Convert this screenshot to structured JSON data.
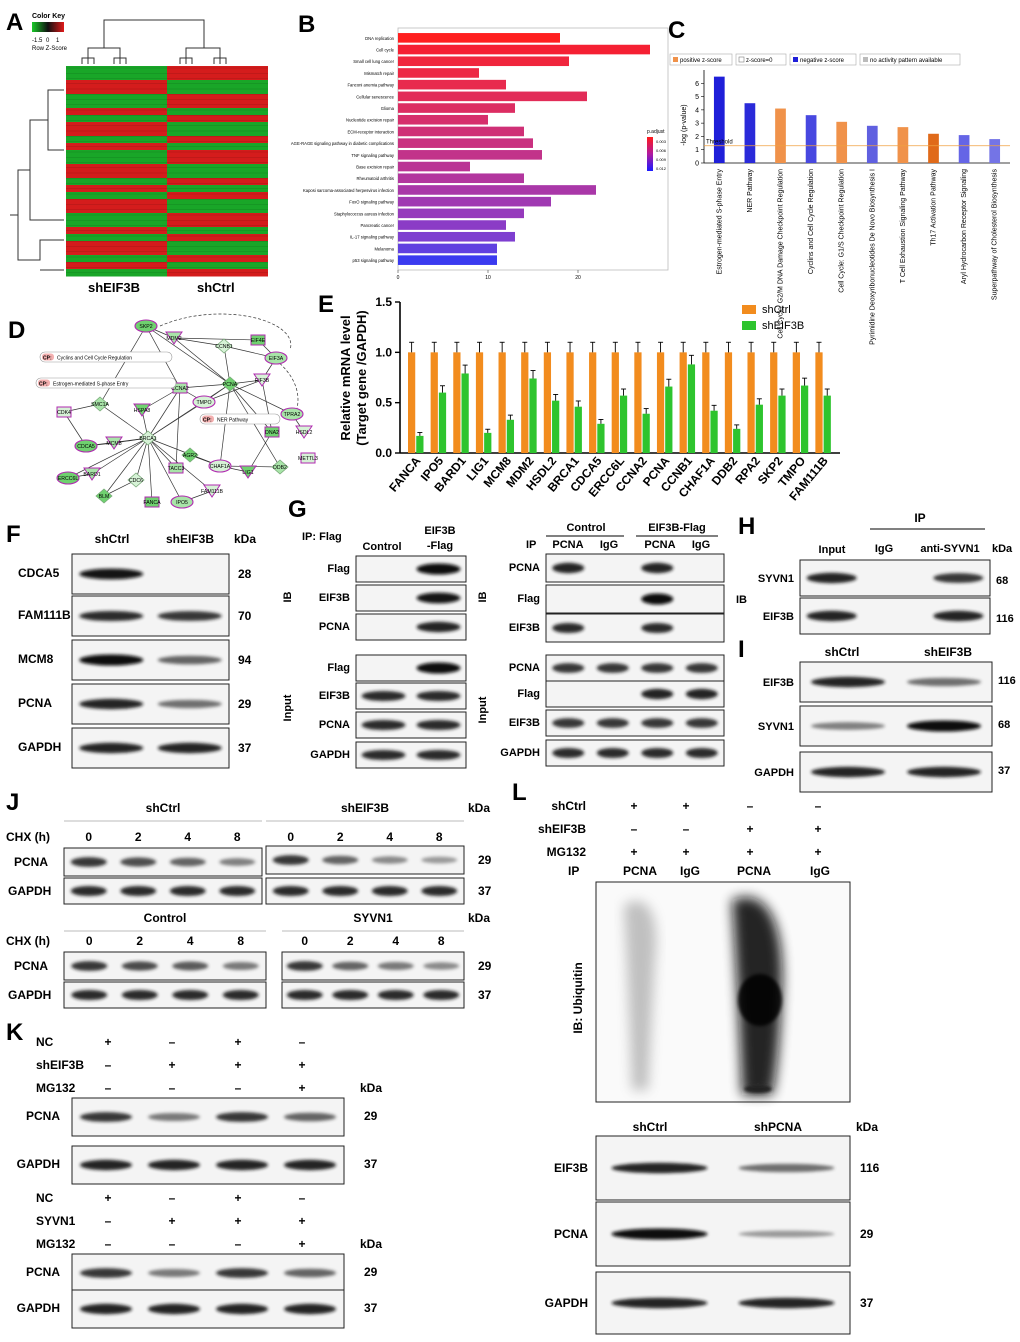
{
  "panels": {
    "A": {
      "letter": "A",
      "color_key_title": "Color Key",
      "scale_ticks": [
        "-1.5",
        "0",
        "1"
      ],
      "row_z_label": "Row Z-Score",
      "group_labels": [
        "shEIF3B",
        "shCtrl"
      ],
      "heatmap_rows": [
        1,
        1,
        -1,
        -1,
        1,
        1,
        -1,
        1,
        -1,
        -1,
        1,
        -1,
        1,
        1,
        -1,
        -1,
        1,
        -1,
        1,
        -1,
        -1,
        1,
        1,
        -1,
        1,
        -1,
        -1,
        1,
        -1,
        1
      ],
      "colors": {
        "up": "#d41c1c",
        "down": "#19a628"
      }
    },
    "B": {
      "letter": "B",
      "chart_data": {
        "type": "bar",
        "categories": [
          "DNA replication",
          "Cell cycle",
          "Small cell lung cancer",
          "Mismatch repair",
          "Fanconi anemia pathway",
          "Cellular senescence",
          "Glioma",
          "Nucleotide excision repair",
          "ECM-receptor interaction",
          "AGE-RAGE signaling pathway in diabetic complications",
          "TNF signaling pathway",
          "Base excision repair",
          "Rheumatoid arthritis",
          "Kaposi sarcoma-associated herpesvirus infection",
          "FoxO signaling pathway",
          "Staphylococcus aureus infection",
          "Pancreatic cancer",
          "IL-17 signaling pathway",
          "Melanoma",
          "p53 signaling pathway"
        ],
        "values": [
          18,
          28,
          19,
          9,
          12,
          21,
          13,
          10,
          14,
          15,
          16,
          8,
          14,
          22,
          17,
          14,
          12,
          13,
          11,
          11
        ],
        "xticks": [
          "0",
          "10",
          "20"
        ],
        "xlim": [
          0,
          30
        ],
        "legend_title": "p.adjust",
        "legend_ticks": [
          "0.003",
          "0.006",
          "0.009",
          "0.012"
        ]
      }
    },
    "C": {
      "letter": "C",
      "legend": [
        "positive z-score",
        "z-score=0",
        "negative z-score",
        "no activity pattern available"
      ],
      "ylabel": "-log (p-value)",
      "threshold_label": "Threshold",
      "chart_data": {
        "type": "bar",
        "categories": [
          "Estrogen-mediated S-phase Entry",
          "NER Pathway",
          "Cell Cycle: G2/M DNA Damage Checkpoint Regulation",
          "Cyclins and Cell Cycle Regulation",
          "Cell Cycle: G1/S Checkpoint Regulation",
          "Pyrimidine Deoxyribonucleotides De Novo Biosynthesis I",
          "T Cell Exhaustion Signaling Pathway",
          "Th17 Activation Pathway",
          "Aryl Hydrocarbon Receptor Signaling",
          "Superpathway of Cholesterol Biosynthesis"
        ],
        "values": [
          6.5,
          4.5,
          4.1,
          3.6,
          3.1,
          2.8,
          2.7,
          2.2,
          2.1,
          1.8
        ],
        "colors": [
          "#1f1fd9",
          "#2a2ad9",
          "#f0924a",
          "#4848e0",
          "#f0924a",
          "#6060e0",
          "#f0924a",
          "#e06a1a",
          "#6565e6",
          "#7474e6"
        ],
        "yticks": [
          "0",
          "1",
          "2",
          "3",
          "4",
          "5",
          "6"
        ],
        "ylim": [
          0,
          7
        ],
        "threshold": 1.3
      }
    },
    "D": {
      "letter": "D",
      "genes": [
        "SKP2",
        "MDM2",
        "CCNB1",
        "EIF4E",
        "EIF3A",
        "EIF3B",
        "PCNA",
        "CCNA2",
        "TMPO",
        "HSPA8",
        "SMC1A",
        "CDK4",
        "CDCA5",
        "MCM8",
        "BRCA1",
        "DNA2",
        "TPRA2",
        "HSDL2",
        "AGR2",
        "TACC3",
        "CHAF1A",
        "LIG1",
        "DDB2",
        "METTL3",
        "ERCC6L",
        "BARD1",
        "CDC6",
        "FANCA",
        "IPO5",
        "FAM111B",
        "BLM"
      ],
      "pathways": [
        {
          "tag": "CP:",
          "name": "Cyclins and Cell Cycle Regulation"
        },
        {
          "tag": "CP:",
          "name": "Estrogen-mediated S-phase Entry"
        },
        {
          "tag": "CP:",
          "name": "NER Pathway"
        }
      ]
    },
    "E": {
      "letter": "E",
      "ylabel1": "Relative mRNA level",
      "ylabel2": "(Target gene /GAPDH)",
      "chart_data": {
        "type": "bar",
        "categories": [
          "FANCA",
          "IPO5",
          "BARD1",
          "LIG1",
          "MCM8",
          "MDM2",
          "HSDL2",
          "BRCA1",
          "CDCA5",
          "ERCC6L",
          "CCNA2",
          "PCNA",
          "CCNB1",
          "CHAF1A",
          "DDB2",
          "RPA2",
          "SKP2",
          "TMPO",
          "FAM111B"
        ],
        "series": [
          {
            "name": "shCtrl",
            "color": "#f28c1e",
            "values": [
              1,
              1,
              1,
              1,
              1,
              1,
              1,
              1,
              1,
              1,
              1,
              1,
              1,
              1,
              1,
              1,
              1,
              1,
              1
            ]
          },
          {
            "name": "shEIF3B",
            "color": "#2ec42e",
            "values": [
              0.17,
              0.6,
              0.79,
              0.2,
              0.33,
              0.74,
              0.52,
              0.46,
              0.29,
              0.57,
              0.39,
              0.66,
              0.88,
              0.42,
              0.24,
              0.48,
              0.57,
              0.67,
              0.57
            ]
          }
        ],
        "yticks": [
          "0.0",
          "0.5",
          "1.0",
          "1.5"
        ],
        "ylim": [
          0,
          1.5
        ]
      }
    },
    "F": {
      "letter": "F",
      "cols": [
        "shCtrl",
        "shEIF3B"
      ],
      "kda": "kDa",
      "rows": [
        {
          "label": "CDCA5",
          "kda": "28",
          "lanes": [
            0.95,
            0.0
          ]
        },
        {
          "label": "FAM111B",
          "kda": "70",
          "lanes": [
            0.85,
            0.8
          ]
        },
        {
          "label": "MCM8",
          "kda": "94",
          "lanes": [
            1.0,
            0.6
          ]
        },
        {
          "label": "PCNA",
          "kda": "29",
          "lanes": [
            0.9,
            0.55
          ]
        },
        {
          "label": "GAPDH",
          "kda": "37",
          "lanes": [
            0.9,
            0.9
          ]
        }
      ]
    },
    "G": {
      "letter": "G",
      "ip_label": "IP: Flag",
      "left_cols": [
        "Control",
        "EIF3B",
        "-Flag"
      ],
      "ib": "IB",
      "input": "Input",
      "left_top": [
        {
          "label": "Flag",
          "lanes": [
            0.0,
            1.0
          ]
        },
        {
          "label": "EIF3B",
          "lanes": [
            0.0,
            0.95
          ]
        },
        {
          "label": "PCNA",
          "lanes": [
            0.0,
            0.9
          ]
        }
      ],
      "left_bottom": [
        {
          "label": "Flag",
          "lanes": [
            0.0,
            1.0
          ]
        },
        {
          "label": "EIF3B",
          "lanes": [
            0.85,
            0.85
          ]
        },
        {
          "label": "PCNA",
          "lanes": [
            0.85,
            0.85
          ]
        },
        {
          "label": "GAPDH",
          "lanes": [
            0.85,
            0.85
          ]
        }
      ],
      "right_groups": [
        "Control",
        "EIF3B-Flag"
      ],
      "right_ip": "IP",
      "right_cols": [
        "PCNA",
        "IgG",
        "PCNA",
        "IgG"
      ],
      "right_top": [
        {
          "label": "PCNA",
          "lanes": [
            0.9,
            0.0,
            0.9,
            0.0
          ]
        },
        {
          "label": "Flag",
          "lanes": [
            0.0,
            0.0,
            1.0,
            0.0
          ]
        },
        {
          "label": "EIF3B",
          "lanes": [
            0.85,
            0.0,
            0.85,
            0.0
          ]
        }
      ],
      "right_bottom": [
        {
          "label": "PCNA",
          "lanes": [
            0.8,
            0.8,
            0.8,
            0.8
          ]
        },
        {
          "label": "Flag",
          "lanes": [
            0.0,
            0.0,
            0.9,
            0.9
          ]
        },
        {
          "label": "EIF3B",
          "lanes": [
            0.8,
            0.8,
            0.8,
            0.8
          ]
        },
        {
          "label": "GAPDH",
          "lanes": [
            0.85,
            0.85,
            0.85,
            0.85
          ]
        }
      ]
    },
    "H": {
      "letter": "H",
      "ip": "IP",
      "cols": [
        "Input",
        "IgG",
        "anti-SYVN1"
      ],
      "kda": "kDa",
      "ib": "IB",
      "rows": [
        {
          "label": "SYVN1",
          "kda": "68",
          "lanes": [
            0.9,
            0.0,
            0.8
          ]
        },
        {
          "label": "EIF3B",
          "kda": "116",
          "lanes": [
            0.9,
            0.0,
            0.9
          ]
        }
      ]
    },
    "I": {
      "letter": "I",
      "cols": [
        "shCtrl",
        "shEIF3B"
      ],
      "rows": [
        {
          "label": "EIF3B",
          "kda": "116",
          "lanes": [
            0.9,
            0.55
          ]
        },
        {
          "label": "SYVN1",
          "kda": "68",
          "lanes": [
            0.45,
            1.0
          ]
        },
        {
          "label": "GAPDH",
          "kda": "37",
          "lanes": [
            0.9,
            0.9
          ]
        }
      ]
    },
    "J": {
      "letter": "J",
      "kda": "kDa",
      "chx": "CHX (h)",
      "blocks": [
        {
          "title": "shCtrl",
          "times": [
            "0",
            "2",
            "4",
            "8"
          ],
          "pcna": [
            0.8,
            0.7,
            0.6,
            0.45
          ],
          "gapdh": [
            0.85,
            0.85,
            0.85,
            0.85
          ]
        },
        {
          "title": "shEIF3B",
          "times": [
            "0",
            "2",
            "4",
            "8"
          ],
          "pcna": [
            0.8,
            0.6,
            0.4,
            0.3
          ],
          "gapdh": [
            0.85,
            0.85,
            0.85,
            0.85
          ]
        },
        {
          "title": "Control",
          "times": [
            "0",
            "2",
            "4",
            "8"
          ],
          "pcna": [
            0.8,
            0.72,
            0.65,
            0.5
          ],
          "gapdh": [
            0.85,
            0.85,
            0.85,
            0.85
          ]
        },
        {
          "title": "SYVN1",
          "times": [
            "0",
            "2",
            "4",
            "8"
          ],
          "pcna": [
            0.8,
            0.6,
            0.5,
            0.4
          ],
          "gapdh": [
            0.85,
            0.85,
            0.85,
            0.85
          ]
        }
      ],
      "rows": [
        "PCNA",
        "GAPDH"
      ],
      "kda_values": [
        "29",
        "37"
      ]
    },
    "K": {
      "letter": "K",
      "kda": "kDa",
      "top_conditions": [
        {
          "label": "NC",
          "signs": [
            "+",
            "–",
            "+",
            "–"
          ]
        },
        {
          "label": "shEIF3B",
          "signs": [
            "–",
            "+",
            "+",
            "+"
          ]
        },
        {
          "label": "MG132",
          "signs": [
            "–",
            "–",
            "–",
            "+"
          ]
        }
      ],
      "top_rows": [
        {
          "label": "PCNA",
          "kda": "29",
          "lanes": [
            0.8,
            0.5,
            0.8,
            0.6
          ]
        },
        {
          "label": "GAPDH",
          "kda": "37",
          "lanes": [
            0.9,
            0.9,
            0.9,
            0.9
          ]
        }
      ],
      "bottom_conditions": [
        {
          "label": "NC",
          "signs": [
            "+",
            "–",
            "+",
            "–"
          ]
        },
        {
          "label": "SYVN1",
          "signs": [
            "–",
            "+",
            "+",
            "+"
          ]
        },
        {
          "label": "MG132",
          "signs": [
            "–",
            "–",
            "–",
            "+"
          ]
        }
      ],
      "bottom_rows": [
        {
          "label": "PCNA",
          "kda": "29",
          "lanes": [
            0.8,
            0.5,
            0.8,
            0.6
          ]
        },
        {
          "label": "GAPDH",
          "kda": "37",
          "lanes": [
            0.9,
            0.9,
            0.9,
            0.9
          ]
        }
      ]
    },
    "L": {
      "letter": "L",
      "conditions": [
        {
          "label": "shCtrl",
          "signs": [
            "+",
            "+",
            "–",
            "–"
          ]
        },
        {
          "label": "shEIF3B",
          "signs": [
            "–",
            "–",
            "+",
            "+"
          ]
        },
        {
          "label": "MG132",
          "signs": [
            "+",
            "+",
            "+",
            "+"
          ]
        }
      ],
      "ip": "IP",
      "ip_cols": [
        "PCNA",
        "IgG",
        "PCNA",
        "IgG"
      ],
      "ub_label": "IB: Ubiquitin",
      "bottom_cols": [
        "shCtrl",
        "shPCNA"
      ],
      "kda": "kDa",
      "bottom_rows": [
        {
          "label": "EIF3B",
          "kda": "116",
          "lanes": [
            0.9,
            0.55
          ]
        },
        {
          "label": "PCNA",
          "kda": "29",
          "lanes": [
            1.0,
            0.3
          ]
        },
        {
          "label": "GAPDH",
          "kda": "37",
          "lanes": [
            0.9,
            0.9
          ]
        }
      ]
    }
  }
}
